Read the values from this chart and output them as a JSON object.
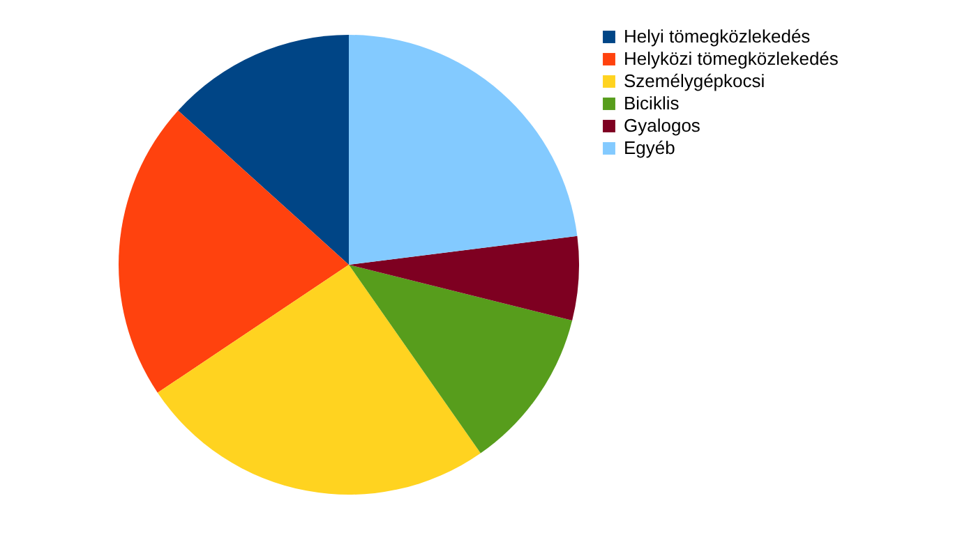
{
  "chart_data": {
    "type": "pie",
    "categories": [
      "Helyi tömegközlekedés",
      "Helyközi tömegközlekedés",
      "Személygépkocsi",
      "Biciklis",
      "Gyalogos",
      "Egyéb"
    ],
    "values": [
      13.3,
      21.1,
      25.3,
      11.4,
      5.9,
      23.0
    ],
    "colors": [
      "#004586",
      "#ff420e",
      "#ffd320",
      "#579d1c",
      "#7e0021",
      "#83caff"
    ],
    "legend": "right"
  }
}
